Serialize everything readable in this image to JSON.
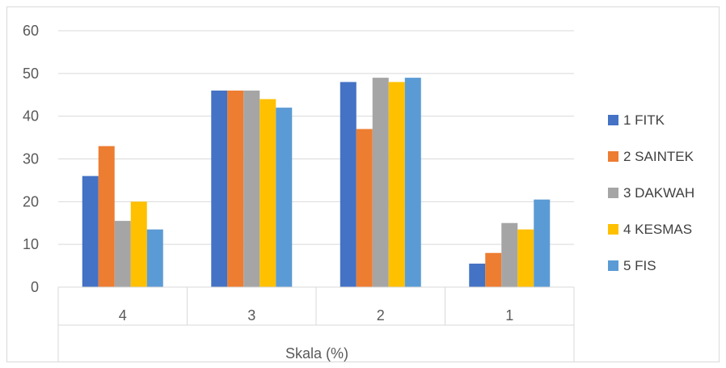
{
  "chart_data": {
    "type": "bar",
    "title": "",
    "xlabel": "Skala (%)",
    "ylabel": "",
    "ylim": [
      0,
      60
    ],
    "yticks": [
      0,
      10,
      20,
      30,
      40,
      50,
      60
    ],
    "grid": true,
    "legend_position": "right",
    "categories": [
      "4",
      "3",
      "2",
      "1"
    ],
    "series": [
      {
        "name": "1 FITK",
        "color": "#4472c4",
        "values": [
          26,
          46,
          48,
          5.5
        ]
      },
      {
        "name": "2 SAINTEK",
        "color": "#ed7d31",
        "values": [
          33,
          46,
          37,
          8
        ]
      },
      {
        "name": "3 DAKWAH",
        "color": "#a5a5a5",
        "values": [
          15.5,
          46,
          49,
          15
        ]
      },
      {
        "name": "4 KESMAS",
        "color": "#ffc000",
        "values": [
          20,
          44,
          48,
          13.5
        ]
      },
      {
        "name": "5 FIS",
        "color": "#5b9bd5",
        "values": [
          13.5,
          42,
          49,
          20.5
        ]
      }
    ]
  }
}
